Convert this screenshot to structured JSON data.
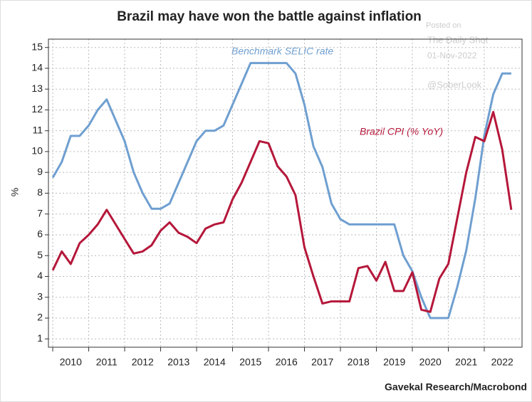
{
  "chart_data": {
    "type": "line",
    "title": "Brazil may have won the battle against inflation",
    "y_label": "%",
    "source": "Gavekal Research/Macrobond",
    "watermark": [
      "Posted on",
      "The Daily Shot",
      "01-Nov-2022",
      "@SoberLook"
    ],
    "annotations": [
      "Benchmark SELIC rate",
      "Brazil CPI (% YoY)"
    ],
    "x": [
      2010.0,
      2010.25,
      2010.5,
      2010.75,
      2011.0,
      2011.25,
      2011.5,
      2011.75,
      2012.0,
      2012.25,
      2012.5,
      2012.75,
      2013.0,
      2013.25,
      2013.5,
      2013.75,
      2014.0,
      2014.25,
      2014.5,
      2014.75,
      2015.0,
      2015.25,
      2015.5,
      2015.75,
      2016.0,
      2016.25,
      2016.5,
      2016.75,
      2017.0,
      2017.25,
      2017.5,
      2017.75,
      2018.0,
      2018.25,
      2018.5,
      2018.75,
      2019.0,
      2019.25,
      2019.5,
      2019.75,
      2020.0,
      2020.25,
      2020.5,
      2020.75,
      2021.0,
      2021.25,
      2021.5,
      2021.75,
      2022.0,
      2022.25,
      2022.5,
      2022.75
    ],
    "series": [
      {
        "name": "Benchmark SELIC rate",
        "color": "#6f9fd0",
        "values": [
          8.75,
          9.5,
          10.75,
          10.75,
          11.25,
          12.0,
          12.5,
          11.5,
          10.5,
          9.0,
          8.0,
          7.25,
          7.25,
          7.5,
          8.5,
          9.5,
          10.5,
          11.0,
          11.0,
          11.25,
          12.25,
          13.25,
          14.25,
          14.25,
          14.25,
          14.25,
          14.25,
          13.75,
          12.25,
          10.25,
          9.25,
          7.5,
          6.75,
          6.5,
          6.5,
          6.5,
          6.5,
          6.5,
          6.5,
          5.0,
          4.25,
          3.0,
          2.0,
          2.0,
          2.0,
          3.5,
          5.25,
          7.75,
          10.75,
          12.75,
          13.75,
          13.75
        ]
      },
      {
        "name": "Brazil CPI (% YoY)",
        "color": "#b5173a",
        "values": [
          4.3,
          5.2,
          4.6,
          5.6,
          6.0,
          6.5,
          7.2,
          6.5,
          5.8,
          5.1,
          5.2,
          5.5,
          6.2,
          6.6,
          6.1,
          5.9,
          5.6,
          6.3,
          6.5,
          6.6,
          7.7,
          8.5,
          9.5,
          10.5,
          10.4,
          9.3,
          8.8,
          7.9,
          5.4,
          4.0,
          2.7,
          2.8,
          2.8,
          2.8,
          4.4,
          4.5,
          3.8,
          4.7,
          3.3,
          3.3,
          4.2,
          2.4,
          2.3,
          3.9,
          4.6,
          6.8,
          9.0,
          10.7,
          10.5,
          11.9,
          10.1,
          7.2
        ]
      }
    ],
    "xlim": [
      2009.88,
      2023.05
    ],
    "xticks": [
      2010,
      2011,
      2012,
      2013,
      2014,
      2015,
      2016,
      2017,
      2018,
      2019,
      2020,
      2021,
      2022
    ],
    "ylim": [
      0.6,
      15.4
    ],
    "yticks": [
      1,
      2,
      3,
      4,
      5,
      6,
      7,
      8,
      9,
      10,
      11,
      12,
      13,
      14,
      15
    ],
    "grid": true
  }
}
